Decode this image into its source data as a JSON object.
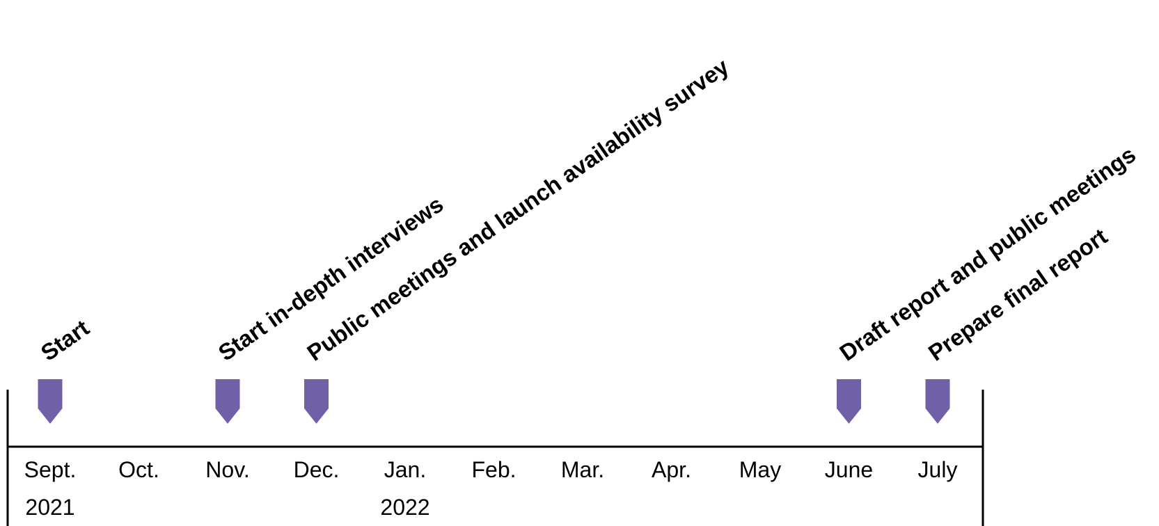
{
  "timeline": {
    "months": [
      {
        "label": "Sept.",
        "year": "2021"
      },
      {
        "label": "Oct.",
        "year": ""
      },
      {
        "label": "Nov.",
        "year": ""
      },
      {
        "label": "Dec.",
        "year": ""
      },
      {
        "label": "Jan.",
        "year": "2022"
      },
      {
        "label": "Feb.",
        "year": ""
      },
      {
        "label": "Mar.",
        "year": ""
      },
      {
        "label": "Apr.",
        "year": ""
      },
      {
        "label": "May",
        "year": ""
      },
      {
        "label": "June",
        "year": ""
      },
      {
        "label": "July",
        "year": ""
      }
    ],
    "milestones": [
      {
        "label": "Start",
        "month_index": 0
      },
      {
        "label": "Start in-depth interviews",
        "month_index": 2
      },
      {
        "label": "Public meetings and launch availability survey",
        "month_index": 3
      },
      {
        "label": "Draft report and public meetings",
        "month_index": 9
      },
      {
        "label": "Prepare final report",
        "month_index": 10
      }
    ],
    "marker_color": "#7060a8",
    "line_color": "#000000"
  }
}
